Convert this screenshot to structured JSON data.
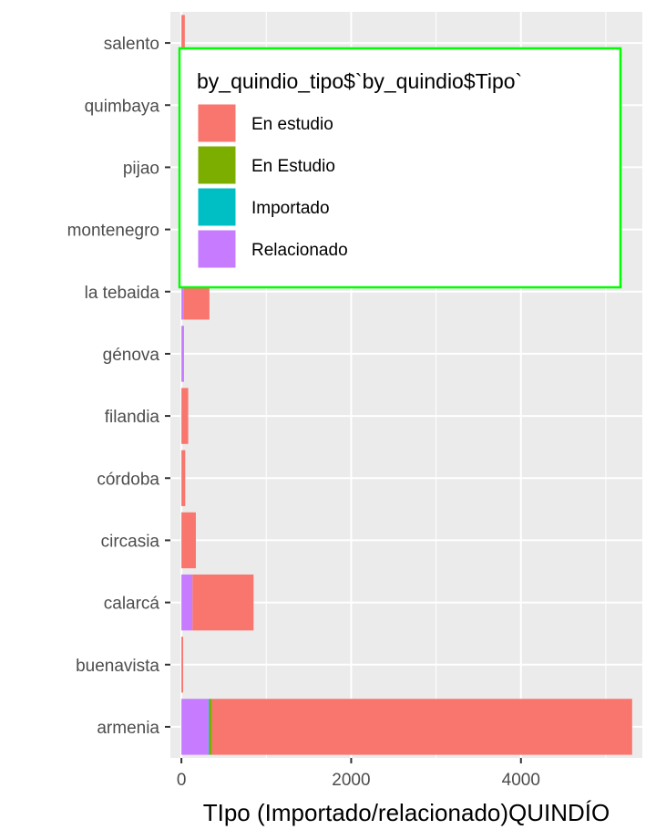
{
  "chart_data": {
    "type": "bar",
    "orientation": "horizontal",
    "stacked": true,
    "title": "",
    "xlabel": "TIpo (Importado/relacionado)QUINDÍO",
    "ylabel": "",
    "xlim": [
      -130,
      5430
    ],
    "xticks": [
      0,
      2000,
      4000
    ],
    "xtick_labels": [
      "0",
      "2000",
      "4000"
    ],
    "categories": [
      "armenia",
      "buenavista",
      "calarcá",
      "circasia",
      "córdoba",
      "filandia",
      "génova",
      "la tebaida",
      "montenegro",
      "pijao",
      "quimbaya",
      "salento"
    ],
    "series": [
      {
        "name": "Relacionado",
        "color": "#C77CFF",
        "values": [
          320,
          0,
          130,
          0,
          0,
          0,
          25,
          30,
          0,
          0,
          0,
          0
        ]
      },
      {
        "name": "Importado",
        "color": "#00BFC4",
        "values": [
          10,
          0,
          0,
          0,
          0,
          0,
          0,
          0,
          0,
          0,
          0,
          0
        ]
      },
      {
        "name": "En Estudio",
        "color": "#7CAE00",
        "values": [
          30,
          0,
          0,
          0,
          0,
          0,
          0,
          0,
          0,
          0,
          0,
          0
        ]
      },
      {
        "name": "En estudio",
        "color": "#F8766D",
        "values": [
          4950,
          20,
          720,
          170,
          45,
          80,
          5,
          300,
          0,
          0,
          0,
          40
        ]
      }
    ],
    "grid": true,
    "legend": {
      "title": "by_quindio_tipo$`by_quindio$Tipo`",
      "position": "top-right",
      "entries": [
        {
          "label": "En estudio",
          "color": "#F8766D"
        },
        {
          "label": "En Estudio",
          "color": "#7CAE00"
        },
        {
          "label": "Importado",
          "color": "#00BFC4"
        },
        {
          "label": "Relacionado",
          "color": "#C77CFF"
        }
      ],
      "border_color": "#00FF00"
    },
    "panel_background": "#EBEBEB"
  }
}
